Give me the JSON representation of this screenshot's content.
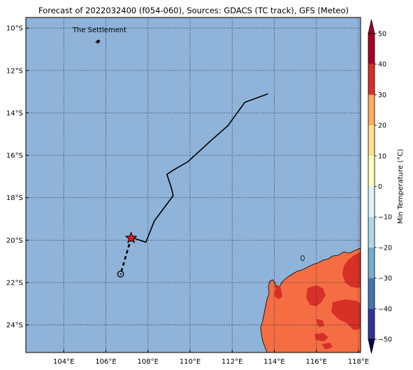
{
  "title": "Forecast of 2022032400 (f054-060), Sources: GDACS (TC track), GFS (Meteo)",
  "colors": {
    "ocean": "#8fb3d9",
    "land_fill": "#f46d43",
    "land_hot": "#d73027",
    "track": "#000000",
    "storm_marker": "#e41a1c",
    "grid": "#1f2d4d"
  },
  "map": {
    "lon_range": [
      102.2,
      118.1
    ],
    "lat_range": [
      -25.3,
      -9.5
    ],
    "lon_ticks": [
      {
        "value": 104,
        "label": "104°E"
      },
      {
        "value": 106,
        "label": "106°E"
      },
      {
        "value": 108,
        "label": "108°E"
      },
      {
        "value": 110,
        "label": "110°E"
      },
      {
        "value": 112,
        "label": "112°E"
      },
      {
        "value": 114,
        "label": "114°E"
      },
      {
        "value": 116,
        "label": "116°E"
      },
      {
        "value": 118,
        "label": "118°E"
      }
    ],
    "lat_ticks": [
      {
        "value": -10,
        "label": "10°S"
      },
      {
        "value": -12,
        "label": "12°S"
      },
      {
        "value": -14,
        "label": "14°S"
      },
      {
        "value": -16,
        "label": "16°S"
      },
      {
        "value": -18,
        "label": "18°S"
      },
      {
        "value": -20,
        "label": "20°S"
      },
      {
        "value": -22,
        "label": "22°S"
      },
      {
        "value": -24,
        "label": "24°S"
      }
    ],
    "place_label": {
      "text": "The Settlement",
      "lon": 105.7,
      "lat": -10.45
    }
  },
  "track": {
    "past": [
      [
        113.7,
        -13.1
      ],
      [
        112.6,
        -13.5
      ],
      [
        111.8,
        -14.6
      ],
      [
        111.0,
        -15.3
      ],
      [
        109.9,
        -16.3
      ],
      [
        109.2,
        -16.7
      ],
      [
        108.9,
        -16.9
      ],
      [
        109.1,
        -17.5
      ],
      [
        109.2,
        -17.9
      ],
      [
        108.9,
        -18.3
      ],
      [
        108.3,
        -19.1
      ],
      [
        107.9,
        -20.1
      ],
      [
        107.3,
        -19.9
      ]
    ],
    "current": [
      107.2,
      -19.9
    ],
    "forecast": [
      [
        107.2,
        -19.9
      ],
      [
        106.7,
        -21.6
      ]
    ],
    "forecast_end": [
      106.7,
      -21.6
    ]
  },
  "colorbar": {
    "label": "Min Temperature (°C)",
    "min": -50,
    "max": 50,
    "tick_labels": [
      "50",
      "40",
      "30",
      "20",
      "10",
      "0",
      "−10",
      "−20",
      "−30",
      "−40",
      "−50"
    ],
    "levels": [
      {
        "from": -50,
        "to": -40,
        "color": "#313695"
      },
      {
        "from": -40,
        "to": -30,
        "color": "#4575b4"
      },
      {
        "from": -30,
        "to": -20,
        "color": "#74add1"
      },
      {
        "from": -20,
        "to": -10,
        "color": "#abd9e9"
      },
      {
        "from": -10,
        "to": 0,
        "color": "#e0f3f8"
      },
      {
        "from": 0,
        "to": 10,
        "color": "#ffffbf"
      },
      {
        "from": 10,
        "to": 20,
        "color": "#fee090"
      },
      {
        "from": 20,
        "to": 30,
        "color": "#fdae61"
      },
      {
        "from": 30,
        "to": 40,
        "color": "#d73027"
      },
      {
        "from": 40,
        "to": 50,
        "color": "#a50026"
      }
    ]
  }
}
